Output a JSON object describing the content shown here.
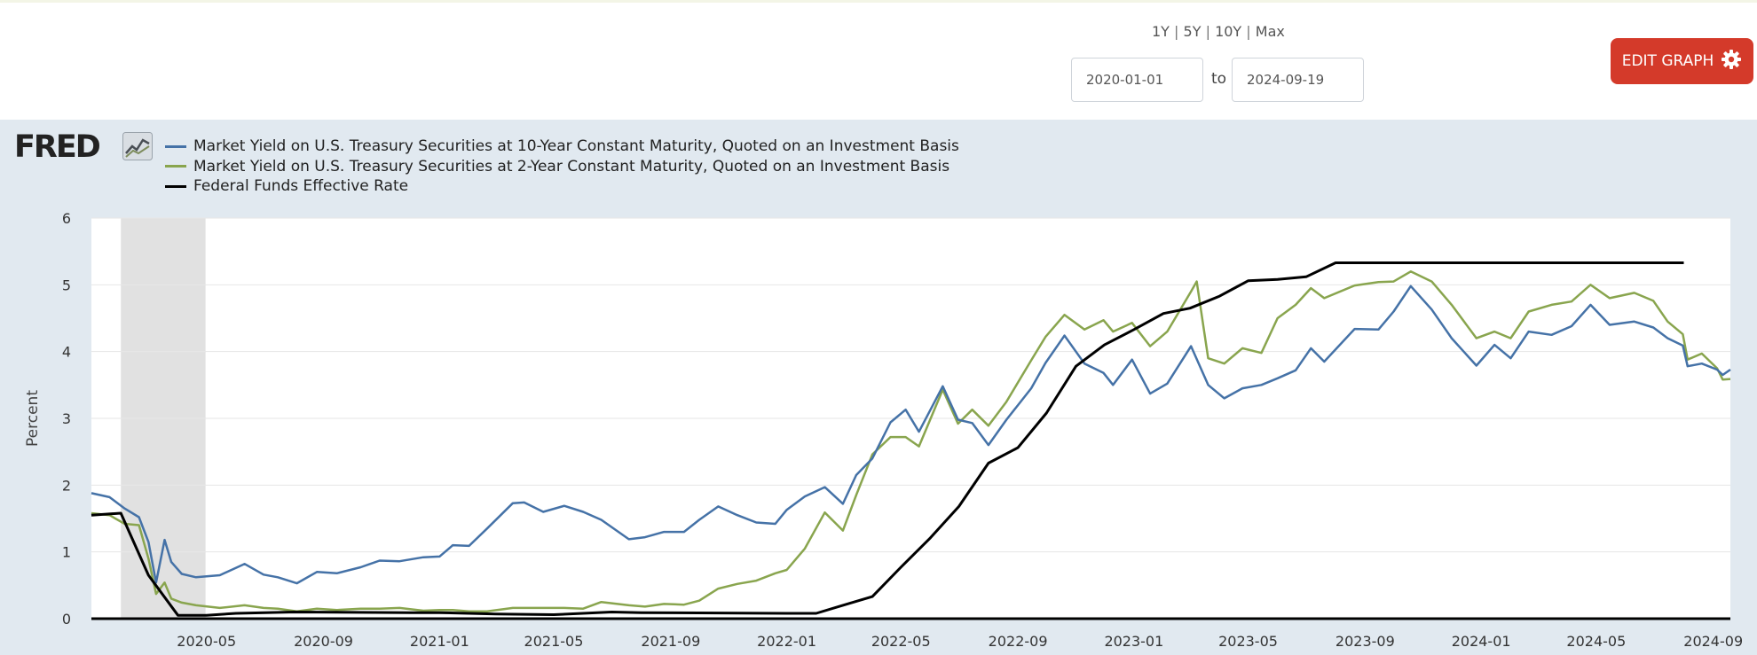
{
  "range_links": [
    "1Y",
    "5Y",
    "10Y",
    "Max"
  ],
  "date_range": {
    "start": "2020-01-01",
    "to_label": "to",
    "end": "2024-09-19"
  },
  "edit_button": {
    "label": "EDIT GRAPH",
    "icon": "gear-icon"
  },
  "logo": {
    "text": "FRED",
    "icon": "line-chart-icon"
  },
  "colors": {
    "ten_year": "#4572a7",
    "two_year": "#89a54e",
    "fed_funds": "#000000",
    "recession": "#e1e1e1",
    "button": "#d43a2a",
    "panel": "#e1e9f0"
  },
  "chart_data": {
    "type": "line",
    "title": "",
    "xlabel": "",
    "ylabel": "Percent",
    "xlim": [
      "2020-01-01",
      "2024-09-19"
    ],
    "ylim": [
      0,
      6
    ],
    "yticks": [
      "0",
      "1",
      "2",
      "3",
      "4",
      "5",
      "6"
    ],
    "xticks": [
      {
        "label": "2020-05",
        "date": "2020-05-01"
      },
      {
        "label": "2020-09",
        "date": "2020-09-01"
      },
      {
        "label": "2021-01",
        "date": "2021-01-01"
      },
      {
        "label": "2021-05",
        "date": "2021-05-01"
      },
      {
        "label": "2021-09",
        "date": "2021-09-01"
      },
      {
        "label": "2022-01",
        "date": "2022-01-01"
      },
      {
        "label": "2022-05",
        "date": "2022-05-01"
      },
      {
        "label": "2022-09",
        "date": "2022-09-01"
      },
      {
        "label": "2023-01",
        "date": "2023-01-01"
      },
      {
        "label": "2023-05",
        "date": "2023-05-01"
      },
      {
        "label": "2023-09",
        "date": "2023-09-01"
      },
      {
        "label": "2024-01",
        "date": "2024-01-01"
      },
      {
        "label": "2024-05",
        "date": "2024-05-01"
      },
      {
        "label": "2024-09",
        "date": "2024-09-01"
      }
    ],
    "recessions": [
      {
        "start": "2020-02-01",
        "end": "2020-04-30"
      }
    ],
    "series": [
      {
        "name": "Market Yield on U.S. Treasury Securities at 10-Year Constant Maturity, Quoted on an Investment Basis",
        "key": "ten_year",
        "points": [
          [
            "2020-01-01",
            1.88
          ],
          [
            "2020-01-20",
            1.82
          ],
          [
            "2020-02-05",
            1.65
          ],
          [
            "2020-02-20",
            1.52
          ],
          [
            "2020-03-01",
            1.15
          ],
          [
            "2020-03-09",
            0.54
          ],
          [
            "2020-03-18",
            1.18
          ],
          [
            "2020-03-25",
            0.85
          ],
          [
            "2020-04-05",
            0.67
          ],
          [
            "2020-04-20",
            0.62
          ],
          [
            "2020-05-15",
            0.65
          ],
          [
            "2020-06-10",
            0.82
          ],
          [
            "2020-06-30",
            0.66
          ],
          [
            "2020-07-15",
            0.62
          ],
          [
            "2020-08-04",
            0.53
          ],
          [
            "2020-08-25",
            0.7
          ],
          [
            "2020-09-15",
            0.68
          ],
          [
            "2020-10-10",
            0.77
          ],
          [
            "2020-10-30",
            0.87
          ],
          [
            "2020-11-20",
            0.86
          ],
          [
            "2020-12-15",
            0.92
          ],
          [
            "2021-01-01",
            0.93
          ],
          [
            "2021-01-15",
            1.1
          ],
          [
            "2021-02-01",
            1.09
          ],
          [
            "2021-02-20",
            1.35
          ],
          [
            "2021-03-19",
            1.73
          ],
          [
            "2021-03-31",
            1.74
          ],
          [
            "2021-04-20",
            1.6
          ],
          [
            "2021-05-12",
            1.69
          ],
          [
            "2021-06-01",
            1.6
          ],
          [
            "2021-06-20",
            1.48
          ],
          [
            "2021-07-19",
            1.19
          ],
          [
            "2021-08-05",
            1.22
          ],
          [
            "2021-08-25",
            1.3
          ],
          [
            "2021-09-15",
            1.3
          ],
          [
            "2021-10-01",
            1.48
          ],
          [
            "2021-10-21",
            1.68
          ],
          [
            "2021-11-10",
            1.55
          ],
          [
            "2021-11-30",
            1.44
          ],
          [
            "2021-12-20",
            1.42
          ],
          [
            "2022-01-01",
            1.63
          ],
          [
            "2022-01-20",
            1.83
          ],
          [
            "2022-02-10",
            1.97
          ],
          [
            "2022-03-01",
            1.72
          ],
          [
            "2022-03-15",
            2.15
          ],
          [
            "2022-04-01",
            2.4
          ],
          [
            "2022-04-20",
            2.94
          ],
          [
            "2022-05-06",
            3.13
          ],
          [
            "2022-05-20",
            2.8
          ],
          [
            "2022-06-14",
            3.48
          ],
          [
            "2022-06-30",
            2.98
          ],
          [
            "2022-07-15",
            2.93
          ],
          [
            "2022-08-01",
            2.6
          ],
          [
            "2022-08-20",
            2.98
          ],
          [
            "2022-09-15",
            3.45
          ],
          [
            "2022-09-30",
            3.83
          ],
          [
            "2022-10-20",
            4.24
          ],
          [
            "2022-11-10",
            3.82
          ],
          [
            "2022-11-30",
            3.68
          ],
          [
            "2022-12-10",
            3.5
          ],
          [
            "2022-12-30",
            3.88
          ],
          [
            "2023-01-18",
            3.37
          ],
          [
            "2023-02-05",
            3.52
          ],
          [
            "2023-03-02",
            4.08
          ],
          [
            "2023-03-20",
            3.5
          ],
          [
            "2023-04-06",
            3.3
          ],
          [
            "2023-04-25",
            3.45
          ],
          [
            "2023-05-15",
            3.5
          ],
          [
            "2023-06-01",
            3.6
          ],
          [
            "2023-06-20",
            3.72
          ],
          [
            "2023-07-06",
            4.05
          ],
          [
            "2023-07-20",
            3.85
          ],
          [
            "2023-08-21",
            4.34
          ],
          [
            "2023-09-15",
            4.33
          ],
          [
            "2023-10-01",
            4.6
          ],
          [
            "2023-10-19",
            4.98
          ],
          [
            "2023-11-10",
            4.63
          ],
          [
            "2023-12-01",
            4.2
          ],
          [
            "2023-12-27",
            3.79
          ],
          [
            "2024-01-15",
            4.1
          ],
          [
            "2024-02-01",
            3.9
          ],
          [
            "2024-02-20",
            4.3
          ],
          [
            "2024-03-15",
            4.25
          ],
          [
            "2024-04-05",
            4.38
          ],
          [
            "2024-04-25",
            4.7
          ],
          [
            "2024-05-15",
            4.4
          ],
          [
            "2024-06-10",
            4.45
          ],
          [
            "2024-06-30",
            4.36
          ],
          [
            "2024-07-15",
            4.2
          ],
          [
            "2024-07-31",
            4.09
          ],
          [
            "2024-08-05",
            3.78
          ],
          [
            "2024-08-20",
            3.82
          ],
          [
            "2024-09-05",
            3.73
          ],
          [
            "2024-09-11",
            3.65
          ],
          [
            "2024-09-19",
            3.73
          ]
        ]
      },
      {
        "name": "Market Yield on U.S. Treasury Securities at 2-Year Constant Maturity, Quoted on an Investment Basis",
        "key": "two_year",
        "points": [
          [
            "2020-01-01",
            1.58
          ],
          [
            "2020-01-20",
            1.55
          ],
          [
            "2020-02-05",
            1.42
          ],
          [
            "2020-02-20",
            1.4
          ],
          [
            "2020-03-01",
            0.9
          ],
          [
            "2020-03-09",
            0.37
          ],
          [
            "2020-03-18",
            0.54
          ],
          [
            "2020-03-25",
            0.3
          ],
          [
            "2020-04-05",
            0.24
          ],
          [
            "2020-04-20",
            0.2
          ],
          [
            "2020-05-15",
            0.16
          ],
          [
            "2020-06-10",
            0.2
          ],
          [
            "2020-06-30",
            0.16
          ],
          [
            "2020-07-15",
            0.15
          ],
          [
            "2020-08-04",
            0.11
          ],
          [
            "2020-08-25",
            0.15
          ],
          [
            "2020-09-15",
            0.13
          ],
          [
            "2020-10-10",
            0.15
          ],
          [
            "2020-10-30",
            0.15
          ],
          [
            "2020-11-20",
            0.16
          ],
          [
            "2020-12-15",
            0.12
          ],
          [
            "2021-01-01",
            0.13
          ],
          [
            "2021-01-15",
            0.13
          ],
          [
            "2021-02-01",
            0.11
          ],
          [
            "2021-02-20",
            0.11
          ],
          [
            "2021-03-19",
            0.16
          ],
          [
            "2021-03-31",
            0.16
          ],
          [
            "2021-04-20",
            0.16
          ],
          [
            "2021-05-12",
            0.16
          ],
          [
            "2021-06-01",
            0.15
          ],
          [
            "2021-06-20",
            0.25
          ],
          [
            "2021-07-19",
            0.2
          ],
          [
            "2021-08-05",
            0.18
          ],
          [
            "2021-08-25",
            0.22
          ],
          [
            "2021-09-15",
            0.21
          ],
          [
            "2021-10-01",
            0.27
          ],
          [
            "2021-10-21",
            0.45
          ],
          [
            "2021-11-10",
            0.52
          ],
          [
            "2021-11-30",
            0.57
          ],
          [
            "2021-12-20",
            0.68
          ],
          [
            "2022-01-01",
            0.73
          ],
          [
            "2022-01-20",
            1.05
          ],
          [
            "2022-02-10",
            1.59
          ],
          [
            "2022-03-01",
            1.32
          ],
          [
            "2022-03-15",
            1.85
          ],
          [
            "2022-04-01",
            2.46
          ],
          [
            "2022-04-20",
            2.72
          ],
          [
            "2022-05-06",
            2.72
          ],
          [
            "2022-05-20",
            2.58
          ],
          [
            "2022-06-14",
            3.43
          ],
          [
            "2022-06-30",
            2.92
          ],
          [
            "2022-07-15",
            3.13
          ],
          [
            "2022-08-01",
            2.89
          ],
          [
            "2022-08-20",
            3.25
          ],
          [
            "2022-09-15",
            3.87
          ],
          [
            "2022-09-30",
            4.22
          ],
          [
            "2022-10-20",
            4.55
          ],
          [
            "2022-11-10",
            4.33
          ],
          [
            "2022-11-30",
            4.47
          ],
          [
            "2022-12-10",
            4.3
          ],
          [
            "2022-12-30",
            4.43
          ],
          [
            "2023-01-18",
            4.08
          ],
          [
            "2023-02-05",
            4.3
          ],
          [
            "2023-03-02",
            4.9
          ],
          [
            "2023-03-08",
            5.05
          ],
          [
            "2023-03-20",
            3.9
          ],
          [
            "2023-04-06",
            3.82
          ],
          [
            "2023-04-25",
            4.05
          ],
          [
            "2023-05-15",
            3.98
          ],
          [
            "2023-06-01",
            4.5
          ],
          [
            "2023-06-20",
            4.7
          ],
          [
            "2023-07-06",
            4.95
          ],
          [
            "2023-07-20",
            4.8
          ],
          [
            "2023-08-21",
            4.99
          ],
          [
            "2023-09-15",
            5.04
          ],
          [
            "2023-10-01",
            5.05
          ],
          [
            "2023-10-19",
            5.2
          ],
          [
            "2023-11-10",
            5.05
          ],
          [
            "2023-12-01",
            4.7
          ],
          [
            "2023-12-27",
            4.2
          ],
          [
            "2024-01-15",
            4.3
          ],
          [
            "2024-02-01",
            4.2
          ],
          [
            "2024-02-20",
            4.6
          ],
          [
            "2024-03-15",
            4.7
          ],
          [
            "2024-04-05",
            4.75
          ],
          [
            "2024-04-25",
            5.0
          ],
          [
            "2024-05-15",
            4.8
          ],
          [
            "2024-06-10",
            4.88
          ],
          [
            "2024-06-30",
            4.76
          ],
          [
            "2024-07-15",
            4.45
          ],
          [
            "2024-07-31",
            4.26
          ],
          [
            "2024-08-05",
            3.88
          ],
          [
            "2024-08-20",
            3.97
          ],
          [
            "2024-09-05",
            3.75
          ],
          [
            "2024-09-11",
            3.58
          ],
          [
            "2024-09-19",
            3.59
          ]
        ]
      },
      {
        "name": "Federal Funds Effective Rate",
        "key": "fed_funds",
        "points": [
          [
            "2020-01-01",
            1.55
          ],
          [
            "2020-02-01",
            1.58
          ],
          [
            "2020-03-01",
            0.65
          ],
          [
            "2020-04-01",
            0.05
          ],
          [
            "2020-05-01",
            0.05
          ],
          [
            "2020-06-01",
            0.08
          ],
          [
            "2020-08-01",
            0.1
          ],
          [
            "2020-12-01",
            0.09
          ],
          [
            "2021-01-01",
            0.09
          ],
          [
            "2021-03-01",
            0.07
          ],
          [
            "2021-05-01",
            0.06
          ],
          [
            "2021-07-01",
            0.1
          ],
          [
            "2021-08-01",
            0.09
          ],
          [
            "2022-01-01",
            0.08
          ],
          [
            "2022-02-01",
            0.08
          ],
          [
            "2022-03-01",
            0.2
          ],
          [
            "2022-04-01",
            0.33
          ],
          [
            "2022-05-01",
            0.77
          ],
          [
            "2022-06-01",
            1.21
          ],
          [
            "2022-07-01",
            1.68
          ],
          [
            "2022-08-01",
            2.33
          ],
          [
            "2022-09-01",
            2.56
          ],
          [
            "2022-10-01",
            3.08
          ],
          [
            "2022-11-01",
            3.78
          ],
          [
            "2022-12-01",
            4.1
          ],
          [
            "2023-01-01",
            4.33
          ],
          [
            "2023-02-01",
            4.57
          ],
          [
            "2023-03-01",
            4.65
          ],
          [
            "2023-04-01",
            4.83
          ],
          [
            "2023-05-01",
            5.06
          ],
          [
            "2023-06-01",
            5.08
          ],
          [
            "2023-07-01",
            5.12
          ],
          [
            "2023-08-01",
            5.33
          ],
          [
            "2024-08-01",
            5.33
          ]
        ]
      }
    ]
  }
}
